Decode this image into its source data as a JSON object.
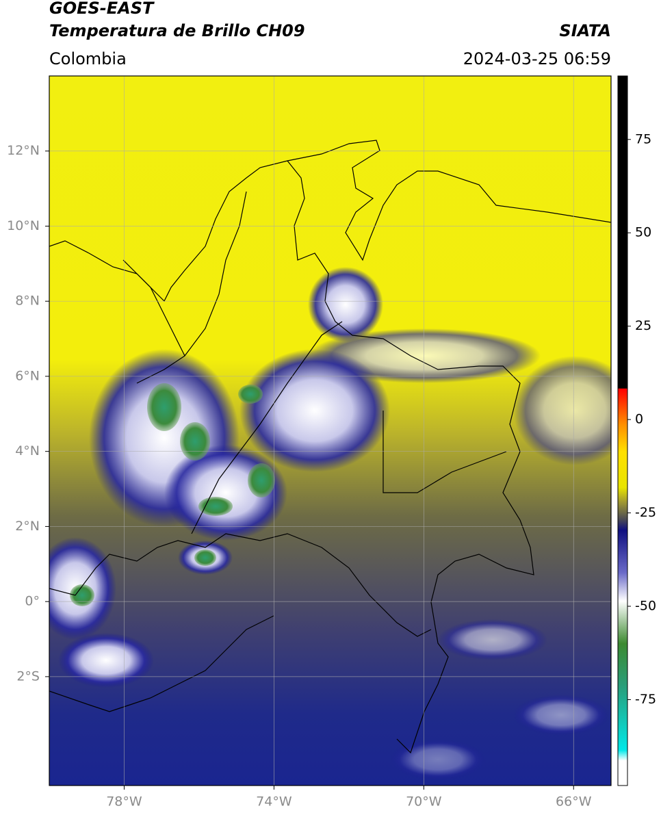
{
  "chart_data": {
    "type": "map",
    "title": "GOES-EAST",
    "subtitle": "Temperatura de Brillo CH09",
    "source": "SIATA",
    "region": "Colombia",
    "timestamp": "2024-03-25 06:59",
    "xlim": [
      -80,
      -65
    ],
    "ylim": [
      -4.9,
      14
    ],
    "xticks": [
      {
        "value": -78,
        "label": "78°W"
      },
      {
        "value": -74,
        "label": "74°W"
      },
      {
        "value": -70,
        "label": "70°W"
      },
      {
        "value": -66,
        "label": "66°W"
      }
    ],
    "yticks": [
      {
        "value": 12,
        "label": "12°N"
      },
      {
        "value": 10,
        "label": "10°N"
      },
      {
        "value": 8,
        "label": "8°N"
      },
      {
        "value": 6,
        "label": "6°N"
      },
      {
        "value": 4,
        "label": "4°N"
      },
      {
        "value": 2,
        "label": "2°N"
      },
      {
        "value": 0,
        "label": "0°"
      },
      {
        "value": -2,
        "label": "2°S"
      }
    ],
    "grid": true,
    "colorbar": {
      "lim": [
        -98,
        92
      ],
      "ticks": [
        75,
        50,
        25,
        0,
        -25,
        -50,
        -75
      ]
    }
  }
}
